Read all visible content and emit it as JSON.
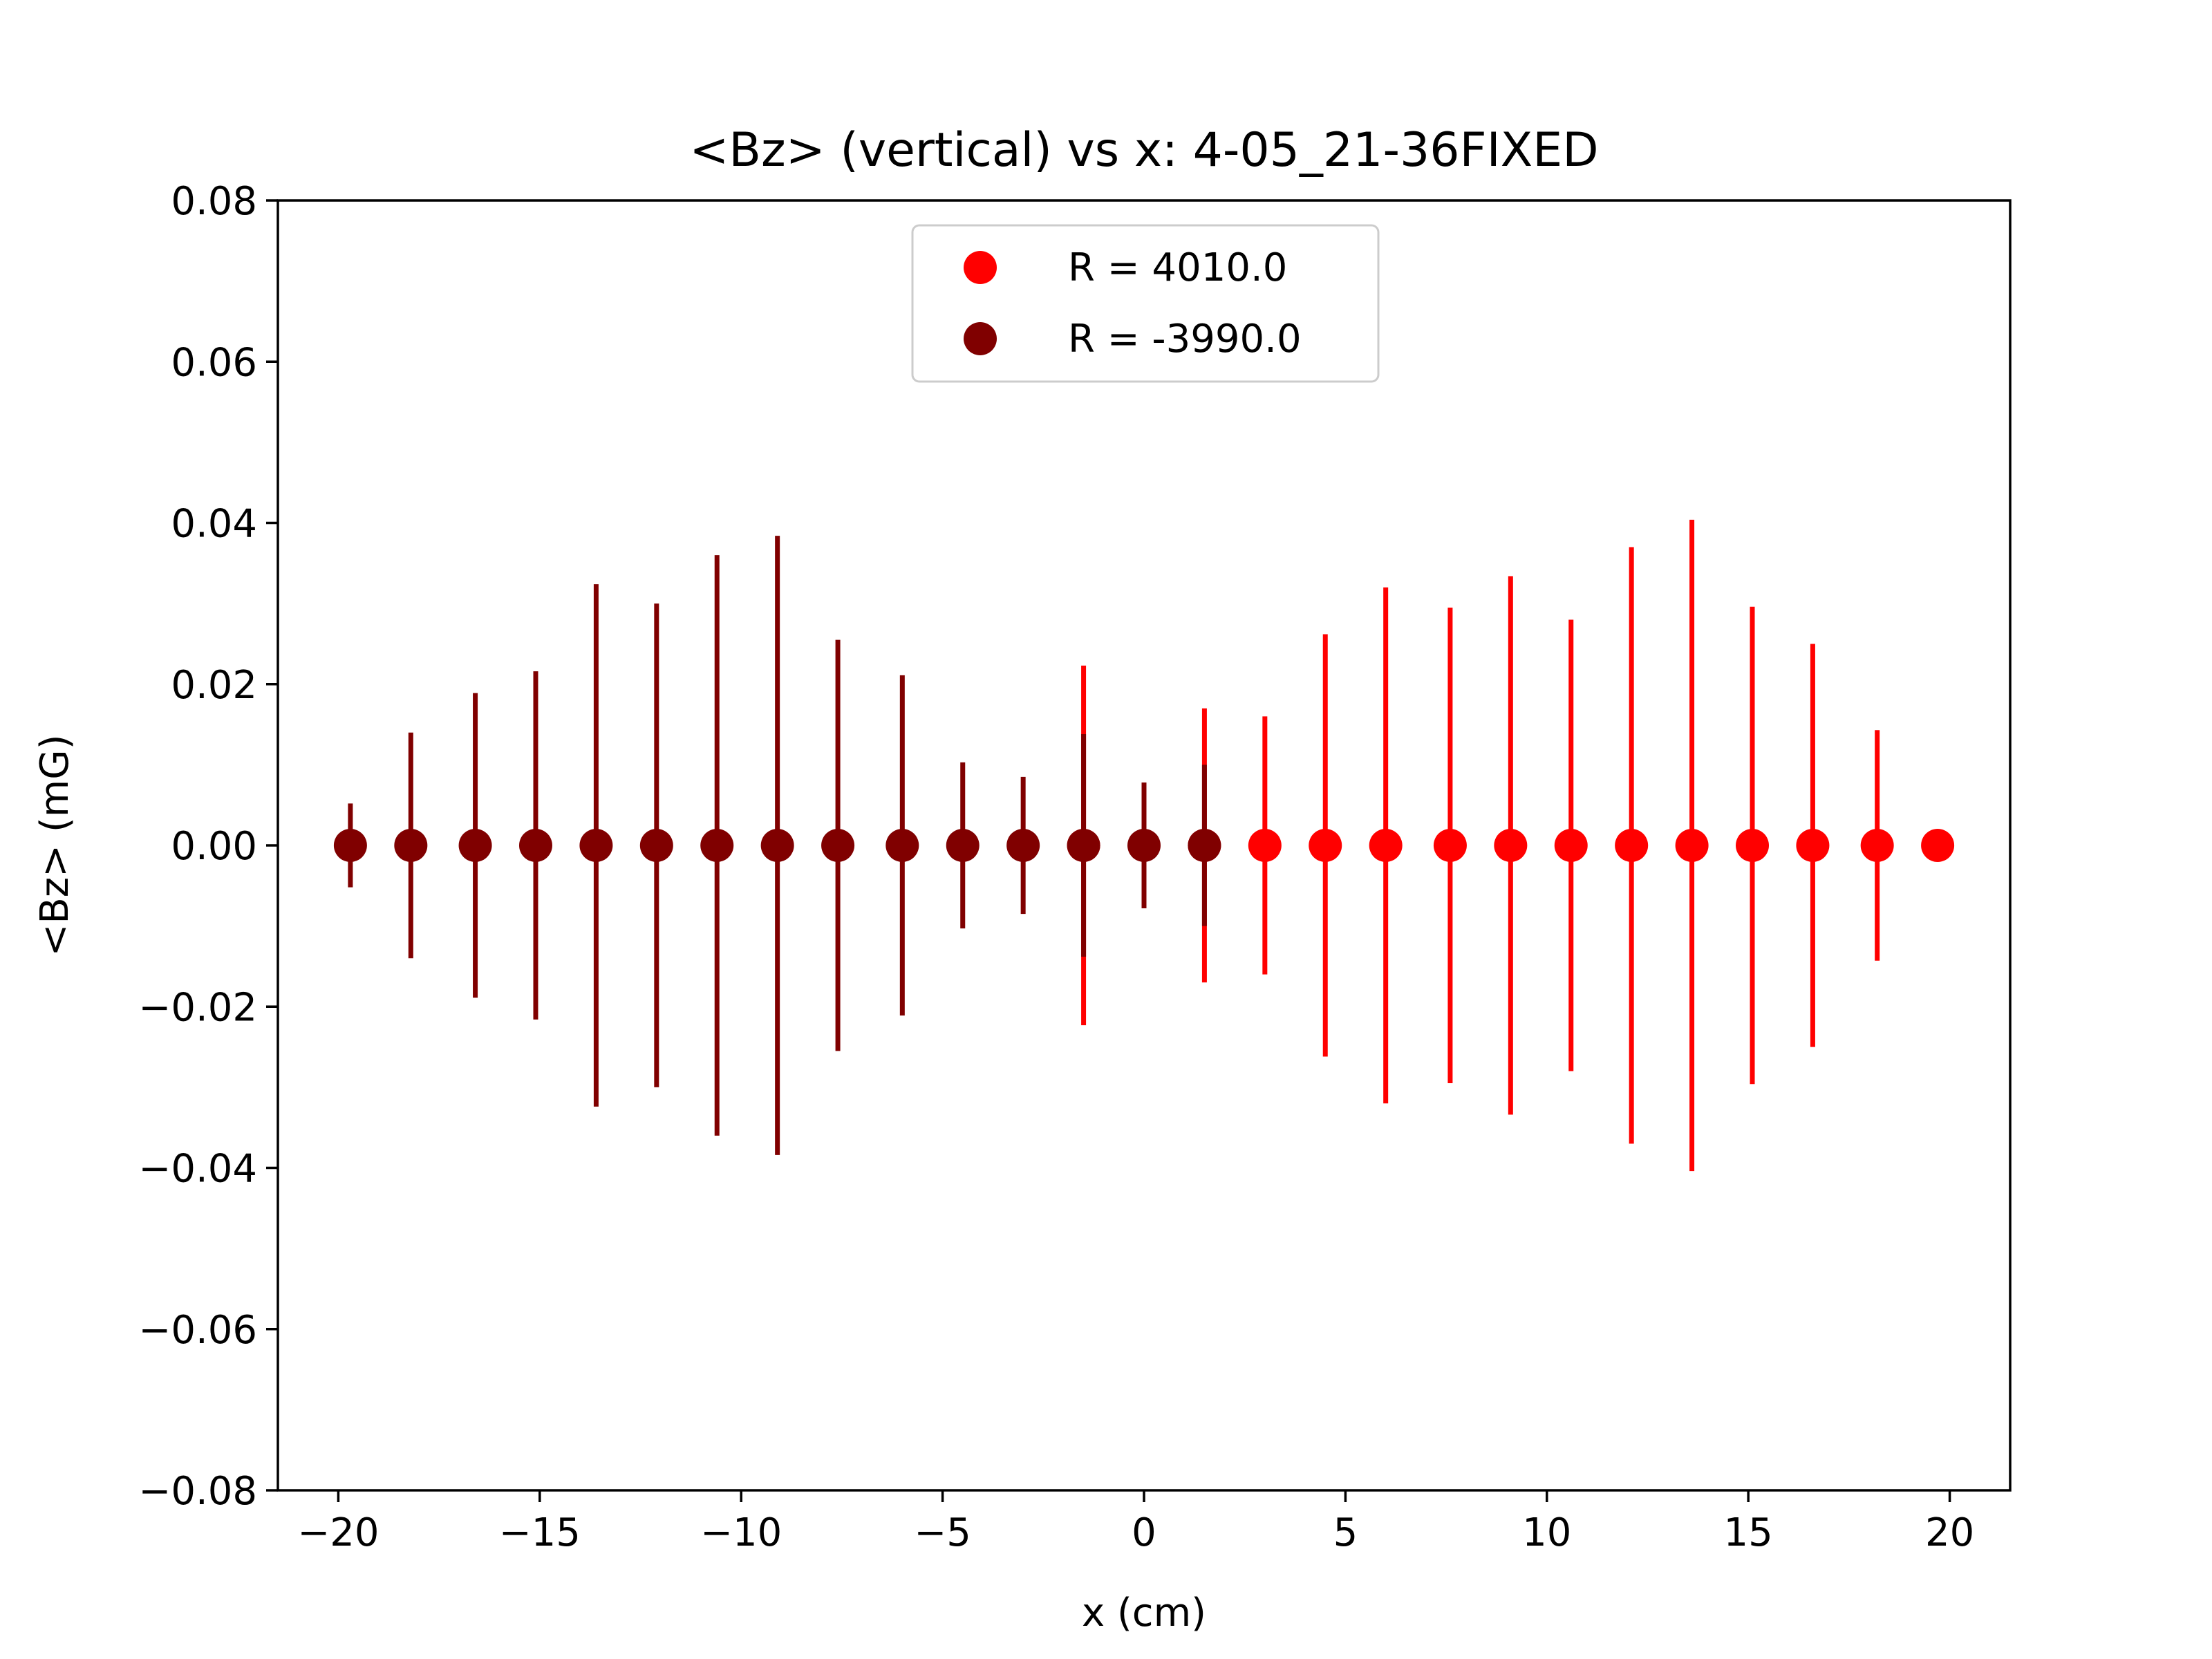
{
  "chart_data": {
    "type": "scatter",
    "title": "<Bz> (vertical) vs x: 4-05_21-36FIXED",
    "xlabel": "x (cm)",
    "ylabel": "<Bz> (mG)",
    "xlim": [
      -21.5,
      21.5
    ],
    "ylim": [
      -0.08,
      0.08
    ],
    "xticks": [
      -20,
      -15,
      -10,
      -5,
      0,
      5,
      10,
      15,
      20
    ],
    "xtick_labels": [
      "−20",
      "−15",
      "−10",
      "−5",
      "0",
      "5",
      "10",
      "15",
      "20"
    ],
    "yticks": [
      0.08,
      0.06,
      0.04,
      0.02,
      0.0,
      -0.02,
      -0.04,
      -0.06,
      -0.08
    ],
    "ytick_labels": [
      "0.08",
      "0.06",
      "0.04",
      "0.02",
      "0.00",
      "−0.02",
      "−0.04",
      "−0.06",
      "−0.08"
    ],
    "grid": false,
    "legend_position": "upper-center",
    "series": [
      {
        "name": "R = 4010.0",
        "color": "#ff0000",
        "x": [
          -1.5,
          1.5,
          3.0,
          4.5,
          6.0,
          7.6,
          9.1,
          10.6,
          12.1,
          13.6,
          15.1,
          16.6,
          18.2,
          19.7
        ],
        "y": [
          0,
          0,
          0,
          0,
          0,
          0,
          0,
          0,
          0,
          0,
          0,
          0,
          0,
          0
        ],
        "yerr": [
          0.0223,
          0.017,
          0.016,
          0.0262,
          0.032,
          0.0295,
          0.0334,
          0.028,
          0.037,
          0.0404,
          0.0296,
          0.025,
          0.0143,
          0.0
        ]
      },
      {
        "name": "R = -3990.0",
        "color": "#800000",
        "x": [
          -19.7,
          -18.2,
          -16.6,
          -15.1,
          -13.6,
          -12.1,
          -10.6,
          -9.1,
          -7.6,
          -6.0,
          -4.5,
          -3.0,
          -1.5,
          0.0,
          1.5
        ],
        "y": [
          0,
          0,
          0,
          0,
          0,
          0,
          0,
          0,
          0,
          0,
          0,
          0,
          0,
          0,
          0
        ],
        "yerr": [
          0.0052,
          0.014,
          0.0189,
          0.0216,
          0.0324,
          0.03,
          0.036,
          0.0384,
          0.0255,
          0.0211,
          0.0103,
          0.0085,
          0.0138,
          0.0078,
          0.01
        ]
      }
    ]
  }
}
